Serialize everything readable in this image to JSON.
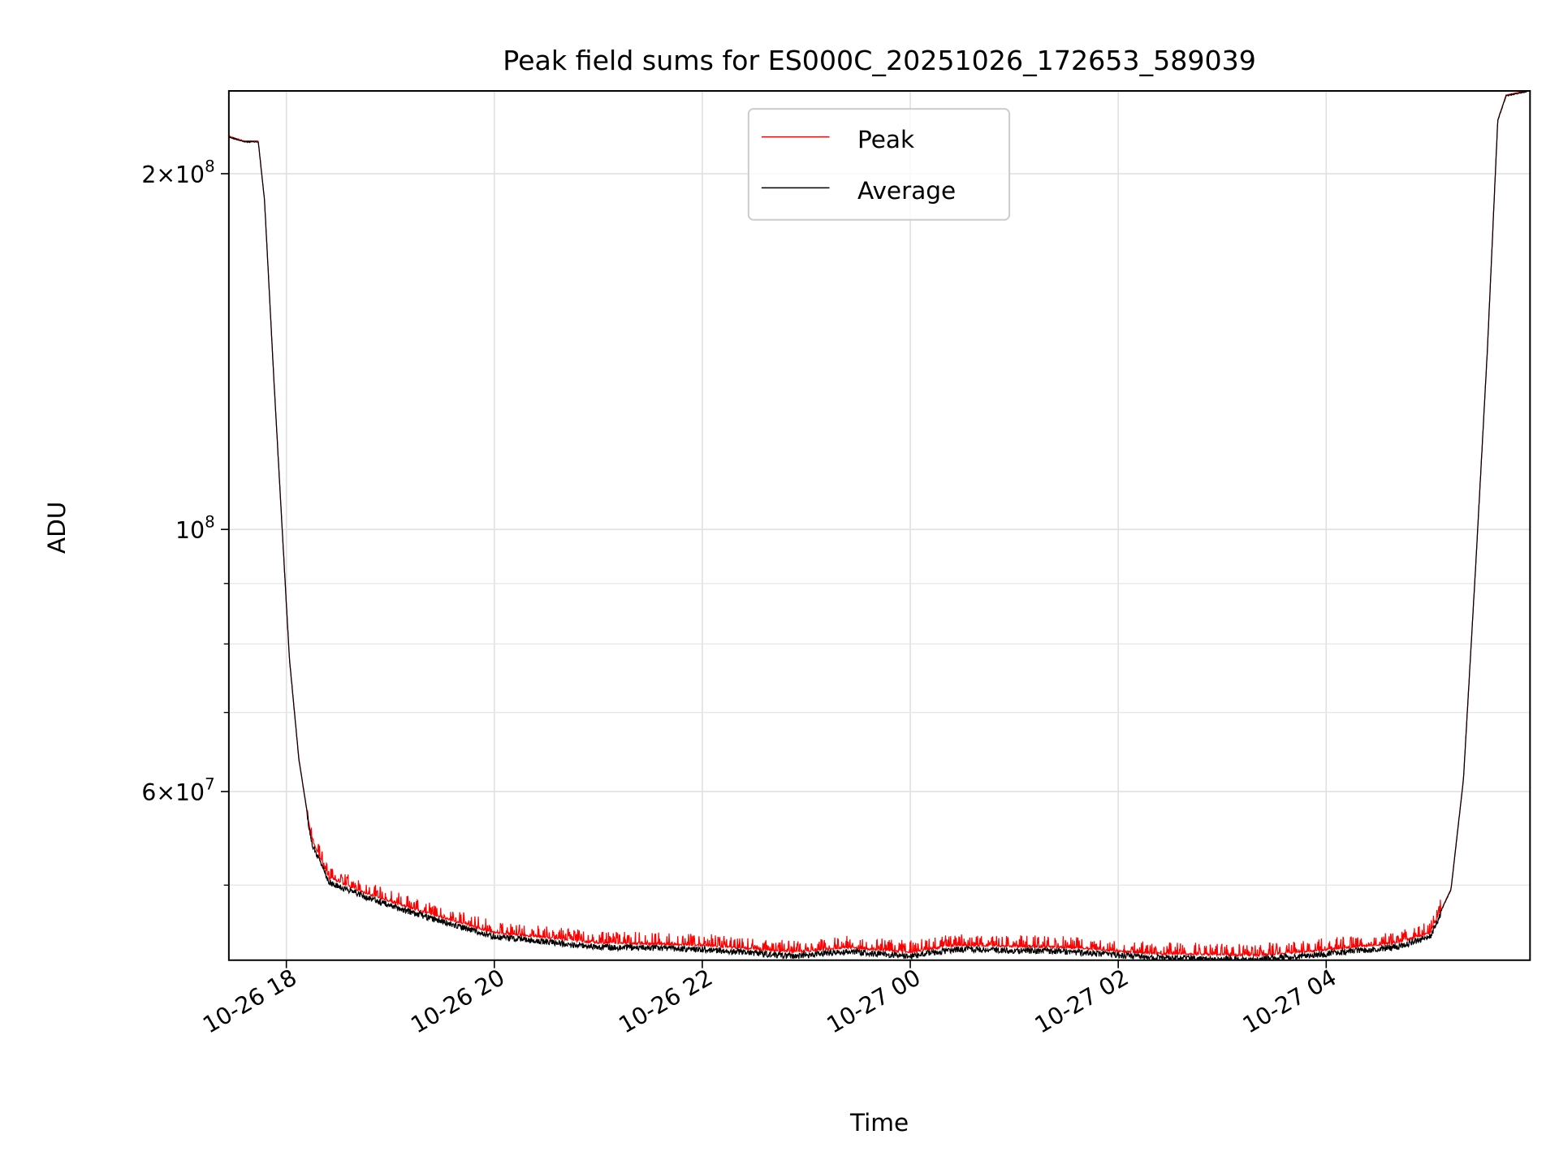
{
  "chart_data": {
    "type": "line",
    "title": "Peak field sums for ES000C_20251026_172653_589039",
    "xlabel": "Time",
    "ylabel": "ADU",
    "yscale": "log",
    "ylim": [
      43200000,
      235000000
    ],
    "xlim_hours": [
      17.447,
      29.96
    ],
    "grid": true,
    "legend": {
      "placement": "top-center",
      "entries": [
        "Peak",
        "Average"
      ]
    },
    "x_ticks": [
      {
        "hour": 18,
        "label": "10-26 18"
      },
      {
        "hour": 20,
        "label": "10-26 20"
      },
      {
        "hour": 22,
        "label": "10-26 22"
      },
      {
        "hour": 24,
        "label": "10-27 00"
      },
      {
        "hour": 26,
        "label": "10-27 02"
      },
      {
        "hour": 28,
        "label": "10-27 04"
      }
    ],
    "y_ticks_major": [
      {
        "value": 200000000,
        "label_base": "2×10",
        "label_exp": "8"
      },
      {
        "value": 100000000,
        "label_base": "10",
        "label_exp": "8"
      },
      {
        "value": 60000000,
        "label_base": "6×10",
        "label_exp": "7"
      }
    ],
    "y_ticks_minor": [
      50000000,
      70000000,
      80000000,
      90000000
    ],
    "series": [
      {
        "name": "Peak",
        "color": "#ff0000",
        "spike_fraction": 0.025
      },
      {
        "name": "Average",
        "color": "#000000",
        "points": [
          [
            17.45,
            215000000.0
          ],
          [
            17.6,
            213000000.0
          ],
          [
            17.73,
            213000000.0
          ],
          [
            17.79,
            190000000.0
          ],
          [
            17.88,
            134000000.0
          ],
          [
            17.96,
            100000000.0
          ],
          [
            18.03,
            77700000.0
          ],
          [
            18.12,
            64000000.0
          ],
          [
            18.24,
            54700000.0
          ],
          [
            18.41,
            50600000.0
          ],
          [
            18.8,
            49000000.0
          ],
          [
            19.27,
            47500000.0
          ],
          [
            20.0,
            45500000.0
          ],
          [
            21.0,
            44600000.0
          ],
          [
            22.0,
            44400000.0
          ],
          [
            22.87,
            43800000.0
          ],
          [
            23.4,
            44200000.0
          ],
          [
            24.0,
            43800000.0
          ],
          [
            24.45,
            44400000.0
          ],
          [
            25.5,
            44200000.0
          ],
          [
            26.27,
            43700000.0
          ],
          [
            27.33,
            43500000.0
          ],
          [
            28.0,
            44000000.0
          ],
          [
            28.68,
            44600000.0
          ],
          [
            29.0,
            45500000.0
          ],
          [
            29.2,
            49600000.0
          ],
          [
            29.32,
            61500000.0
          ],
          [
            29.44,
            94000000.0
          ],
          [
            29.55,
            142000000.0
          ],
          [
            29.65,
            222000000.0
          ],
          [
            29.73,
            233000000.0
          ],
          [
            29.93,
            235000000.0
          ]
        ]
      }
    ]
  }
}
